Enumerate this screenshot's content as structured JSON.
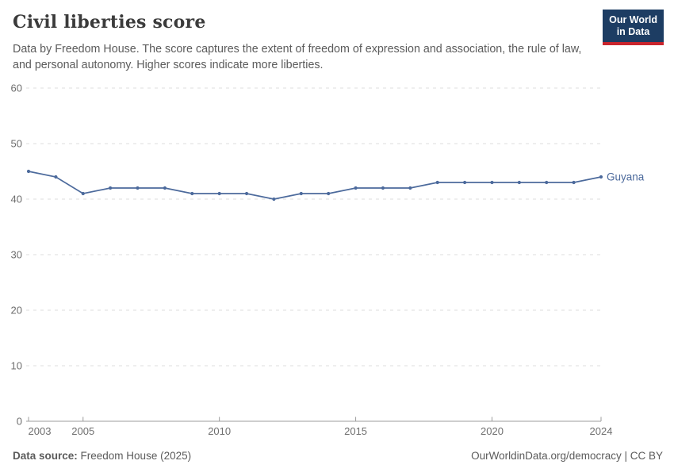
{
  "header": {
    "title": "Civil liberties score",
    "subtitle": "Data by Freedom House. The score captures the extent of freedom of expression and association, the rule of law, and personal autonomy. Higher scores indicate more liberties.",
    "logo": {
      "line1": "Our World",
      "line2": "in Data",
      "bg_color": "#1d3d63",
      "bar_color": "#c9252d"
    }
  },
  "footer": {
    "source_label": "Data source:",
    "source_value": " Freedom House (2025)",
    "rights": "OurWorldinData.org/democracy | CC BY"
  },
  "chart_data": {
    "type": "line",
    "title": "Civil liberties score",
    "xlabel": "",
    "ylabel": "",
    "xlim": [
      2003,
      2024
    ],
    "ylim": [
      0,
      60
    ],
    "x_ticks": [
      2003,
      2005,
      2010,
      2015,
      2020,
      2024
    ],
    "y_ticks": [
      0,
      10,
      20,
      30,
      40,
      50,
      60
    ],
    "grid": "horizontal-dashed",
    "legend_position": "end-of-line-label",
    "x": [
      2003,
      2004,
      2005,
      2006,
      2007,
      2008,
      2009,
      2010,
      2011,
      2012,
      2013,
      2014,
      2015,
      2016,
      2017,
      2018,
      2019,
      2020,
      2021,
      2022,
      2023,
      2024
    ],
    "series": [
      {
        "name": "Guyana",
        "color": "#4c6a9c",
        "values": [
          45,
          44,
          41,
          42,
          42,
          42,
          41,
          41,
          41,
          40,
          41,
          41,
          42,
          42,
          42,
          43,
          43,
          43,
          43,
          43,
          43,
          44
        ]
      }
    ],
    "colors": {
      "gridline": "#dedede",
      "axis": "#9c9c9c",
      "tick_label": "#6e6e6e"
    }
  }
}
